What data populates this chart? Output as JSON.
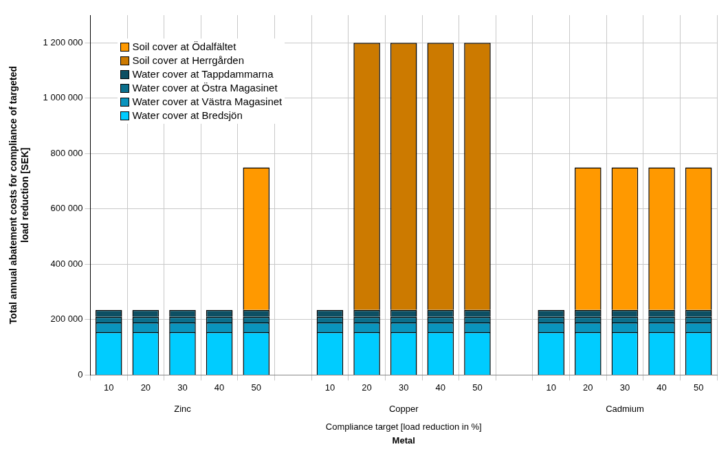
{
  "chart_data": {
    "type": "bar",
    "stacked": true,
    "xlabel": "Metal",
    "ylabel": "Total annual abatement costs for compliance of targeted load reduction [SEK]",
    "categories": [
      "10",
      "20",
      "30",
      "40",
      "50",
      null,
      "10",
      "20",
      "30",
      "40",
      "50",
      null,
      "10",
      "20",
      "30",
      "40",
      "50"
    ],
    "series": [
      {
        "name": "Water cover at Bredsjön",
        "color": "#00ccff",
        "values": [
          155000,
          155000,
          155000,
          155000,
          155000,
          null,
          155000,
          155000,
          155000,
          155000,
          155000,
          null,
          155000,
          155000,
          155000,
          155000,
          155000
        ]
      },
      {
        "name": "Water cover at Västra Magasinet",
        "color": "#0a94bd",
        "values": [
          35000,
          35000,
          35000,
          35000,
          35000,
          null,
          35000,
          35000,
          35000,
          35000,
          35000,
          null,
          35000,
          35000,
          35000,
          35000,
          35000
        ]
      },
      {
        "name": "Water cover at Östra Magasinet",
        "color": "#0b6f8c",
        "values": [
          20000,
          20000,
          20000,
          20000,
          20000,
          null,
          20000,
          20000,
          20000,
          20000,
          20000,
          null,
          20000,
          20000,
          20000,
          20000,
          20000
        ]
      },
      {
        "name": "Water cover at Tappdammarna",
        "color": "#0d4f63",
        "values": [
          25000,
          25000,
          25000,
          25000,
          25000,
          null,
          25000,
          25000,
          25000,
          25000,
          25000,
          null,
          25000,
          25000,
          25000,
          25000,
          25000
        ]
      },
      {
        "name": "Soil cover at Herrgården",
        "color": "#cc7a00",
        "values": [
          null,
          null,
          null,
          null,
          null,
          null,
          null,
          965000,
          965000,
          965000,
          965000,
          null,
          null,
          null,
          null,
          null,
          null
        ]
      },
      {
        "name": "Soil cover at Ödalfältet",
        "color": "#ff9900",
        "values": [
          null,
          null,
          null,
          null,
          515000,
          null,
          null,
          null,
          null,
          null,
          null,
          null,
          null,
          515000,
          515000,
          515000,
          515000
        ]
      }
    ],
    "ylim": [
      0,
      1300000
    ],
    "yticks": [
      0,
      {
        "value": 200000,
        "label": "200 000"
      },
      {
        "value": 400000,
        "label": "400 000"
      },
      {
        "value": 600000,
        "label": "600 000"
      },
      {
        "value": 800000,
        "label": "800 000"
      },
      {
        "value": 1000000,
        "label": "1 000 000"
      },
      {
        "value": 1200000,
        "label": "1 200 000"
      }
    ],
    "grid": true,
    "legend": "top left",
    "annotations": [
      "Zinc",
      "Copper",
      "Cadmium",
      "Compliance target [load reduction in %]"
    ]
  }
}
